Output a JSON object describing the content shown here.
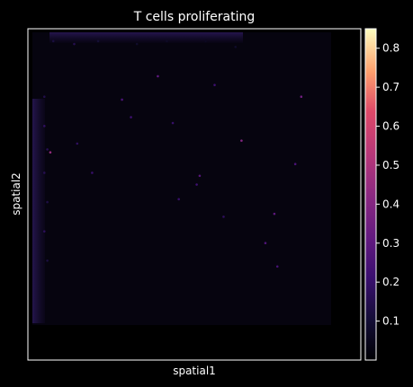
{
  "chart_data": {
    "type": "scatter",
    "title": "T cells proliferating",
    "xlabel": "spatial1",
    "ylabel": "spatial2",
    "background": "#000000",
    "axes_color": "#ffffff",
    "grid": false,
    "colorbar": {
      "colormap": "magma",
      "position": "right",
      "range": [
        0.0,
        0.85
      ],
      "ticks": [
        0.1,
        0.2,
        0.3,
        0.4,
        0.5,
        0.6,
        0.7,
        0.8
      ],
      "tick_labels": [
        "0.1",
        "0.2",
        "0.3",
        "0.4",
        "0.5",
        "0.6",
        "0.7",
        "0.8"
      ]
    },
    "series": [
      {
        "values_description_free": true,
        "points": [
          {
            "x": 0.07,
            "y": 0.97,
            "v": 0.12
          },
          {
            "x": 0.14,
            "y": 0.96,
            "v": 0.15
          },
          {
            "x": 0.22,
            "y": 0.97,
            "v": 0.1
          },
          {
            "x": 0.35,
            "y": 0.96,
            "v": 0.08
          },
          {
            "x": 0.45,
            "y": 0.97,
            "v": 0.07
          },
          {
            "x": 0.58,
            "y": 0.97,
            "v": 0.06
          },
          {
            "x": 0.68,
            "y": 0.95,
            "v": 0.08
          },
          {
            "x": 0.04,
            "y": 0.78,
            "v": 0.14
          },
          {
            "x": 0.04,
            "y": 0.68,
            "v": 0.18
          },
          {
            "x": 0.05,
            "y": 0.6,
            "v": 0.16
          },
          {
            "x": 0.04,
            "y": 0.52,
            "v": 0.15
          },
          {
            "x": 0.05,
            "y": 0.42,
            "v": 0.13
          },
          {
            "x": 0.04,
            "y": 0.32,
            "v": 0.17
          },
          {
            "x": 0.05,
            "y": 0.22,
            "v": 0.12
          },
          {
            "x": 0.06,
            "y": 0.59,
            "v": 0.45
          },
          {
            "x": 0.42,
            "y": 0.85,
            "v": 0.3
          },
          {
            "x": 0.3,
            "y": 0.77,
            "v": 0.25
          },
          {
            "x": 0.9,
            "y": 0.78,
            "v": 0.35
          },
          {
            "x": 0.7,
            "y": 0.63,
            "v": 0.4
          },
          {
            "x": 0.56,
            "y": 0.51,
            "v": 0.28
          },
          {
            "x": 0.55,
            "y": 0.48,
            "v": 0.22
          },
          {
            "x": 0.88,
            "y": 0.55,
            "v": 0.25
          },
          {
            "x": 0.81,
            "y": 0.38,
            "v": 0.3
          },
          {
            "x": 0.2,
            "y": 0.52,
            "v": 0.2
          },
          {
            "x": 0.64,
            "y": 0.37,
            "v": 0.18
          },
          {
            "x": 0.78,
            "y": 0.28,
            "v": 0.26
          },
          {
            "x": 0.82,
            "y": 0.2,
            "v": 0.24
          },
          {
            "x": 0.33,
            "y": 0.71,
            "v": 0.22
          },
          {
            "x": 0.47,
            "y": 0.69,
            "v": 0.2
          },
          {
            "x": 0.15,
            "y": 0.62,
            "v": 0.18
          },
          {
            "x": 0.61,
            "y": 0.82,
            "v": 0.22
          },
          {
            "x": 0.49,
            "y": 0.43,
            "v": 0.2
          }
        ]
      }
    ]
  }
}
